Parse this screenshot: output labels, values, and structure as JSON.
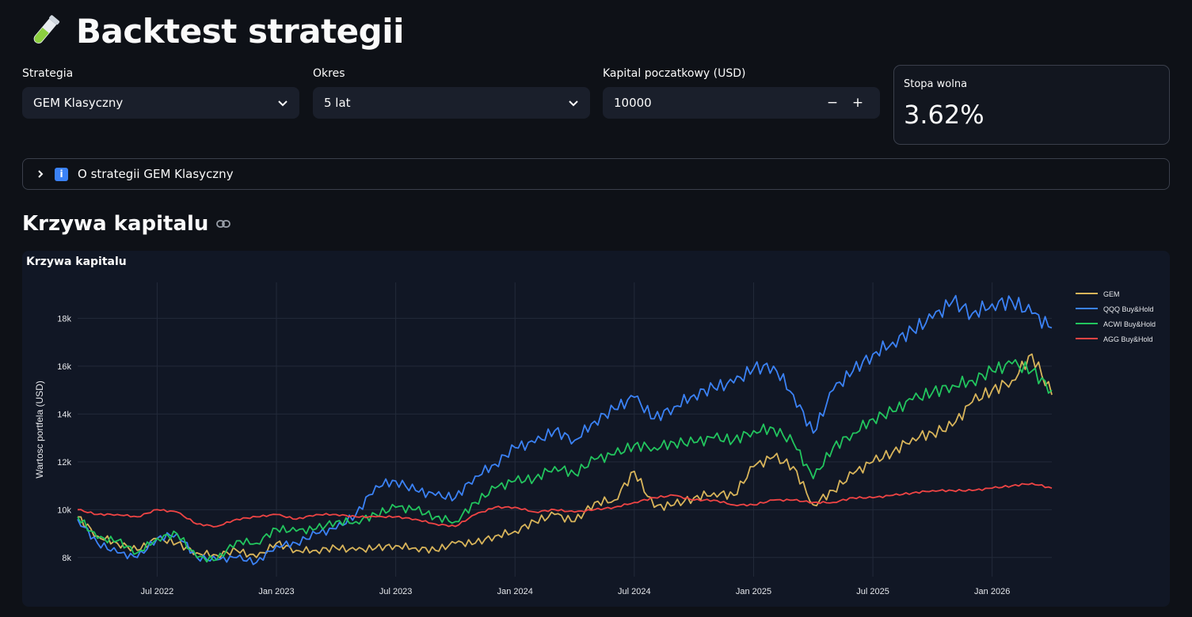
{
  "header": {
    "title": "Backtest strategii",
    "icon": "test-tube-icon"
  },
  "controls": {
    "strategy": {
      "label": "Strategia",
      "value": "GEM Klasyczny"
    },
    "period": {
      "label": "Okres",
      "value": "5 lat"
    },
    "capital": {
      "label": "Kapital poczatkowy (USD)",
      "value": "10000",
      "minus": "−",
      "plus": "+"
    }
  },
  "metric": {
    "label": "Stopa wolna",
    "value": "3.62%"
  },
  "expander": {
    "label": "O strategii GEM Klasyczny",
    "icon_text": "i"
  },
  "section": {
    "title": "Krzywa kapitalu"
  },
  "chart": {
    "card_title": "Krzywa kapitalu"
  },
  "chart_data": {
    "type": "line",
    "title": "Krzywa kapitalu",
    "xlabel": "",
    "ylabel": "Wartosc portfela (USD)",
    "x_range": [
      "2022-03",
      "2026-04"
    ],
    "y_range": [
      7200,
      19500
    ],
    "x_ticks": [
      {
        "date": "2022-07",
        "label": "Jul 2022"
      },
      {
        "date": "2023-01",
        "label": "Jan 2023"
      },
      {
        "date": "2023-07",
        "label": "Jul 2023"
      },
      {
        "date": "2024-01",
        "label": "Jan 2024"
      },
      {
        "date": "2024-07",
        "label": "Jul 2024"
      },
      {
        "date": "2025-01",
        "label": "Jan 2025"
      },
      {
        "date": "2025-07",
        "label": "Jul 2025"
      },
      {
        "date": "2026-01",
        "label": "Jan 2026"
      }
    ],
    "y_ticks": [
      {
        "value": 8000,
        "label": "8k"
      },
      {
        "value": 10000,
        "label": "10k"
      },
      {
        "value": 12000,
        "label": "12k"
      },
      {
        "value": 14000,
        "label": "14k"
      },
      {
        "value": 16000,
        "label": "16k"
      },
      {
        "value": 18000,
        "label": "18k"
      }
    ],
    "grid": true,
    "legend_position": "top-right",
    "x": [
      "2022-03",
      "2022-04",
      "2022-05",
      "2022-06",
      "2022-07",
      "2022-08",
      "2022-09",
      "2022-10",
      "2022-11",
      "2022-12",
      "2023-01",
      "2023-02",
      "2023-03",
      "2023-04",
      "2023-05",
      "2023-06",
      "2023-07",
      "2023-08",
      "2023-09",
      "2023-10",
      "2023-11",
      "2023-12",
      "2024-01",
      "2024-02",
      "2024-03",
      "2024-04",
      "2024-05",
      "2024-06",
      "2024-07",
      "2024-08",
      "2024-09",
      "2024-10",
      "2024-11",
      "2024-12",
      "2025-01",
      "2025-02",
      "2025-03",
      "2025-04",
      "2025-05",
      "2025-06",
      "2025-07",
      "2025-08",
      "2025-09",
      "2025-10",
      "2025-11",
      "2025-12",
      "2026-01",
      "2026-02",
      "2026-03",
      "2026-04"
    ],
    "series": [
      {
        "name": "GEM",
        "color": "#d8b45a",
        "values": [
          9700,
          8900,
          8600,
          8300,
          8800,
          8600,
          8200,
          8100,
          8300,
          8000,
          8600,
          8300,
          8300,
          8400,
          8300,
          8400,
          8500,
          8400,
          8300,
          8600,
          8600,
          8900,
          9100,
          9500,
          9800,
          9500,
          10300,
          10400,
          11600,
          10100,
          10200,
          10500,
          10700,
          10600,
          11800,
          12200,
          11800,
          10200,
          10800,
          11500,
          12000,
          12400,
          13000,
          13200,
          13500,
          14500,
          15000,
          15400,
          16500,
          14800
        ]
      },
      {
        "name": "QQQ Buy&Hold",
        "color": "#3b82f6",
        "values": [
          9600,
          8600,
          8200,
          8000,
          8800,
          9000,
          8000,
          7900,
          8000,
          7800,
          8500,
          8600,
          9000,
          9200,
          9800,
          11000,
          11200,
          10800,
          10600,
          10500,
          11400,
          11900,
          12600,
          12800,
          13300,
          12900,
          13700,
          14200,
          14700,
          13800,
          14300,
          14800,
          15100,
          15300,
          15900,
          16000,
          14800,
          13200,
          15000,
          15800,
          16500,
          17000,
          17500,
          18000,
          18700,
          18200,
          18600,
          18700,
          18200,
          17600
        ]
      },
      {
        "name": "ACWI Buy&Hold",
        "color": "#22c55e",
        "values": [
          9700,
          8800,
          8700,
          8200,
          8800,
          9000,
          8000,
          7900,
          8700,
          8600,
          9200,
          9100,
          9200,
          9500,
          9500,
          9800,
          10100,
          10000,
          9700,
          9500,
          10300,
          10900,
          11200,
          11300,
          11800,
          11500,
          12100,
          12300,
          12700,
          12600,
          12800,
          12800,
          13000,
          12900,
          13300,
          13400,
          12800,
          11300,
          12600,
          13200,
          13800,
          14100,
          14600,
          14900,
          15200,
          15400,
          15800,
          16100,
          15800,
          15000
        ]
      },
      {
        "name": "AGG Buy&Hold",
        "color": "#ef4444",
        "values": [
          10000,
          9800,
          9800,
          9700,
          10000,
          9900,
          9400,
          9300,
          9600,
          9700,
          9800,
          9600,
          9800,
          9800,
          9700,
          9700,
          9700,
          9600,
          9400,
          9300,
          9800,
          10100,
          10100,
          9900,
          10000,
          9900,
          10000,
          10100,
          10300,
          10500,
          10600,
          10400,
          10400,
          10200,
          10200,
          10400,
          10400,
          10300,
          10300,
          10500,
          10500,
          10600,
          10700,
          10800,
          10800,
          10800,
          10900,
          11000,
          11100,
          10900
        ]
      }
    ]
  }
}
